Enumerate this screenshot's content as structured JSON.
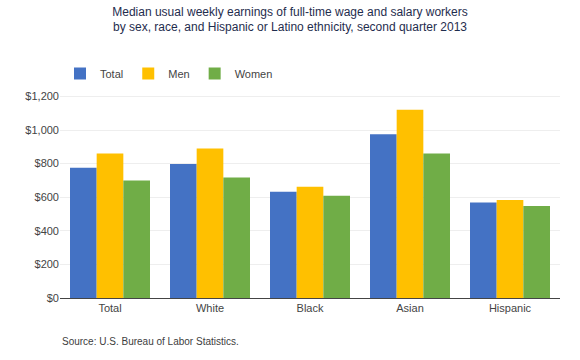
{
  "chart_data": {
    "type": "bar",
    "title": "Median usual weekly earnings of full-time wage and salary workers\nby sex, race, and Hispanic or Latino ethnicity, second quarter 2013",
    "categories": [
      "Total",
      "White",
      "Black",
      "Asian",
      "Hispanic"
    ],
    "series": [
      {
        "name": "Total",
        "color": "#4472C4",
        "values": [
          776,
          798,
          632,
          975,
          568
        ]
      },
      {
        "name": "Men",
        "color": "#FFC000",
        "values": [
          860,
          890,
          662,
          1120,
          583
        ]
      },
      {
        "name": "Women",
        "color": "#70AD47",
        "values": [
          700,
          718,
          608,
          860,
          548
        ]
      }
    ],
    "ylim": [
      0,
      1250
    ],
    "yticks": [
      {
        "value": 0,
        "label": "$0"
      },
      {
        "value": 200,
        "label": "$200"
      },
      {
        "value": 400,
        "label": "$400"
      },
      {
        "value": 600,
        "label": "$600"
      },
      {
        "value": 800,
        "label": "$800"
      },
      {
        "value": 1000,
        "label": "$1,000"
      },
      {
        "value": 1200,
        "label": "$1,200"
      }
    ],
    "grid": true,
    "legend": "upper left",
    "annotations": [
      "Source: U.S. Bureau of Labor Statistics."
    ]
  }
}
